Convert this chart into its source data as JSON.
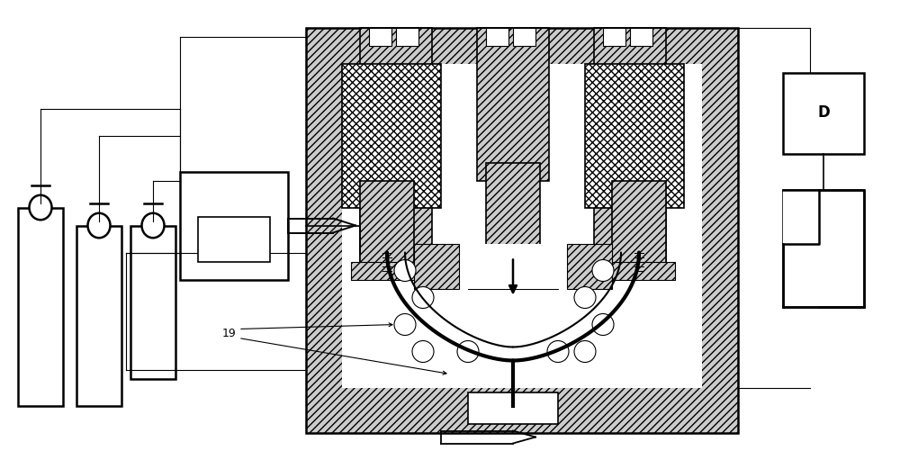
{
  "bg": "#ffffff",
  "lc": "#000000",
  "hc": "#cccccc",
  "figsize": [
    10.0,
    5.01
  ],
  "dpi": 100,
  "xlim": [
    0,
    100
  ],
  "ylim": [
    0,
    50
  ],
  "label_19": "19",
  "label_D": "D"
}
